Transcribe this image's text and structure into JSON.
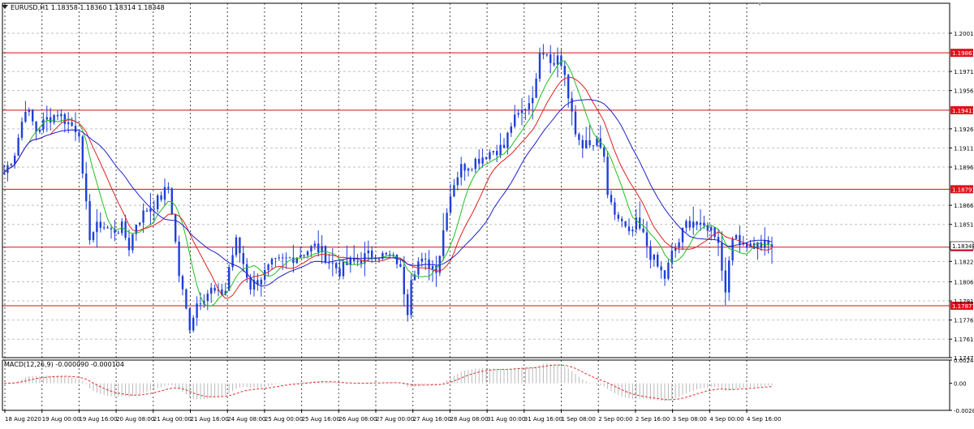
{
  "window": {
    "header": "EURUSD,H1  1.18358 1.18360 1.18314 1.18348",
    "macd_label": "MACD(12,26,9) -0.000090 -0.000104"
  },
  "colors": {
    "background": "#ffffff",
    "grid": "#c0c0c0",
    "vgrid": "#4a4a4a",
    "candle": "#1f3fd8",
    "ma_fast": "#20c020",
    "ma_mid": "#e02020",
    "ma_slow": "#2020c8",
    "level_line": "#d01010",
    "level_label_bg": "#e0101a",
    "macd_hist": "#b8b8b8",
    "macd_signal": "#e03030"
  },
  "chart_data": [
    {
      "type": "line",
      "subtype": "candlestick-price-chart",
      "symbol": "EURUSD",
      "timeframe": "H1",
      "ylim": [
        1.1747,
        1.2025
      ],
      "y_tick_labels": [
        "1.20015",
        "1.19715",
        "1.19565",
        "1.19265",
        "1.19115",
        "1.18965",
        "1.18665",
        "1.18515",
        "1.18225",
        "1.18065",
        "1.17915",
        "1.17765",
        "1.17615",
        "1.17470"
      ],
      "y_ticks": [
        1.20015,
        1.19715,
        1.19565,
        1.19265,
        1.19115,
        1.18965,
        1.18665,
        1.18515,
        1.18225,
        1.18065,
        1.17915,
        1.17765,
        1.17615,
        1.1747
      ],
      "x_tick_labels": [
        "18 Aug 2020",
        "19 Aug 00:00",
        "19 Aug 16:00",
        "20 Aug 08:00",
        "21 Aug 00:00",
        "21 Aug 16:00",
        "24 Aug 08:00",
        "25 Aug 00:00",
        "25 Aug 16:00",
        "26 Aug 08:00",
        "27 Aug 00:00",
        "27 Aug 16:00",
        "28 Aug 08:00",
        "31 Aug 00:00",
        "31 Aug 16:00",
        "1 Sep 08:00",
        "2 Sep 00:00",
        "2 Sep 16:00",
        "3 Sep 08:00",
        "4 Sep 00:00",
        "4 Sep 16:00"
      ],
      "horizontal_levels": [
        {
          "value": 1.19861,
          "label": "1.19861"
        },
        {
          "value": 1.19411,
          "label": "1.19411"
        },
        {
          "value": 1.18791,
          "label": "1.18791"
        },
        {
          "value": 1.18337,
          "label": "1.18337"
        },
        {
          "value": 1.17877,
          "label": "1.17877"
        }
      ],
      "current_price": {
        "value": 1.18348,
        "label": "1.18348"
      },
      "grid": true,
      "price_path": [
        [
          0,
          1.1892
        ],
        [
          3,
          1.1908
        ],
        [
          6,
          1.1944
        ],
        [
          9,
          1.1925
        ],
        [
          12,
          1.1934
        ],
        [
          15,
          1.1939
        ],
        [
          18,
          1.1931
        ],
        [
          21,
          1.1925
        ],
        [
          22,
          1.1887
        ],
        [
          24,
          1.1843
        ],
        [
          27,
          1.1852
        ],
        [
          30,
          1.1846
        ],
        [
          33,
          1.1849
        ],
        [
          35,
          1.1834
        ],
        [
          37,
          1.1853
        ],
        [
          40,
          1.1863
        ],
        [
          43,
          1.187
        ],
        [
          45,
          1.1877
        ],
        [
          46,
          1.188
        ],
        [
          47,
          1.1862
        ],
        [
          49,
          1.1812
        ],
        [
          51,
          1.1784
        ],
        [
          52,
          1.1772
        ],
        [
          54,
          1.179
        ],
        [
          56,
          1.1796
        ],
        [
          58,
          1.18
        ],
        [
          60,
          1.1796
        ],
        [
          62,
          1.18
        ],
        [
          63,
          1.1818
        ],
        [
          65,
          1.1838
        ],
        [
          67,
          1.1821
        ],
        [
          69,
          1.1803
        ],
        [
          71,
          1.1808
        ],
        [
          73,
          1.1813
        ],
        [
          75,
          1.182
        ],
        [
          78,
          1.1823
        ],
        [
          81,
          1.1826
        ],
        [
          84,
          1.183
        ],
        [
          87,
          1.1834
        ],
        [
          89,
          1.183
        ],
        [
          91,
          1.1823
        ],
        [
          94,
          1.1815
        ],
        [
          96,
          1.182
        ],
        [
          98,
          1.1822
        ],
        [
          101,
          1.1826
        ],
        [
          104,
          1.1829
        ],
        [
          107,
          1.1826
        ],
        [
          110,
          1.1823
        ],
        [
          111,
          1.1815
        ],
        [
          113,
          1.1785
        ],
        [
          114,
          1.1812
        ],
        [
          116,
          1.1822
        ],
        [
          119,
          1.182
        ],
        [
          121,
          1.1818
        ],
        [
          122,
          1.1829
        ],
        [
          124,
          1.1865
        ],
        [
          126,
          1.1885
        ],
        [
          128,
          1.1896
        ],
        [
          131,
          1.19
        ],
        [
          134,
          1.1905
        ],
        [
          137,
          1.191
        ],
        [
          140,
          1.1912
        ],
        [
          142,
          1.193
        ],
        [
          145,
          1.194
        ],
        [
          147,
          1.1948
        ],
        [
          149,
          1.1962
        ],
        [
          150,
          1.199
        ],
        [
          152,
          1.1988
        ],
        [
          153,
          1.198
        ],
        [
          155,
          1.1983
        ],
        [
          157,
          1.197
        ],
        [
          158,
          1.195
        ],
        [
          160,
          1.1922
        ],
        [
          162,
          1.1915
        ],
        [
          164,
          1.1912
        ],
        [
          166,
          1.1915
        ],
        [
          168,
          1.1905
        ],
        [
          169,
          1.187
        ],
        [
          171,
          1.186
        ],
        [
          173,
          1.1852
        ],
        [
          175,
          1.1842
        ],
        [
          177,
          1.1852
        ],
        [
          179,
          1.1842
        ],
        [
          181,
          1.1828
        ],
        [
          183,
          1.1818
        ],
        [
          185,
          1.181
        ],
        [
          187,
          1.1828
        ],
        [
          189,
          1.1838
        ],
        [
          191,
          1.1852
        ],
        [
          193,
          1.1855
        ],
        [
          195,
          1.1848
        ],
        [
          197,
          1.185
        ],
        [
          199,
          1.1845
        ],
        [
          200,
          1.184
        ],
        [
          201,
          1.1815
        ],
        [
          202,
          1.18
        ],
        [
          203,
          1.1828
        ],
        [
          205,
          1.1843
        ],
        [
          207,
          1.1838
        ],
        [
          209,
          1.1835
        ],
        [
          211,
          1.1835
        ],
        [
          214,
          1.1835
        ],
        [
          215,
          1.1834
        ]
      ]
    },
    {
      "type": "area",
      "subtype": "macd-histogram-with-signal",
      "indicator": "MACD(12,26,9)",
      "macd_value": -9e-05,
      "signal_value": -0.000104,
      "ylim": [
        -0.00282,
        0.00242
      ],
      "y_tick_labels": [
        "0.00242",
        "0.00",
        "-0.00282"
      ],
      "y_ticks": [
        0.00242,
        0.0,
        -0.00282
      ]
    }
  ]
}
